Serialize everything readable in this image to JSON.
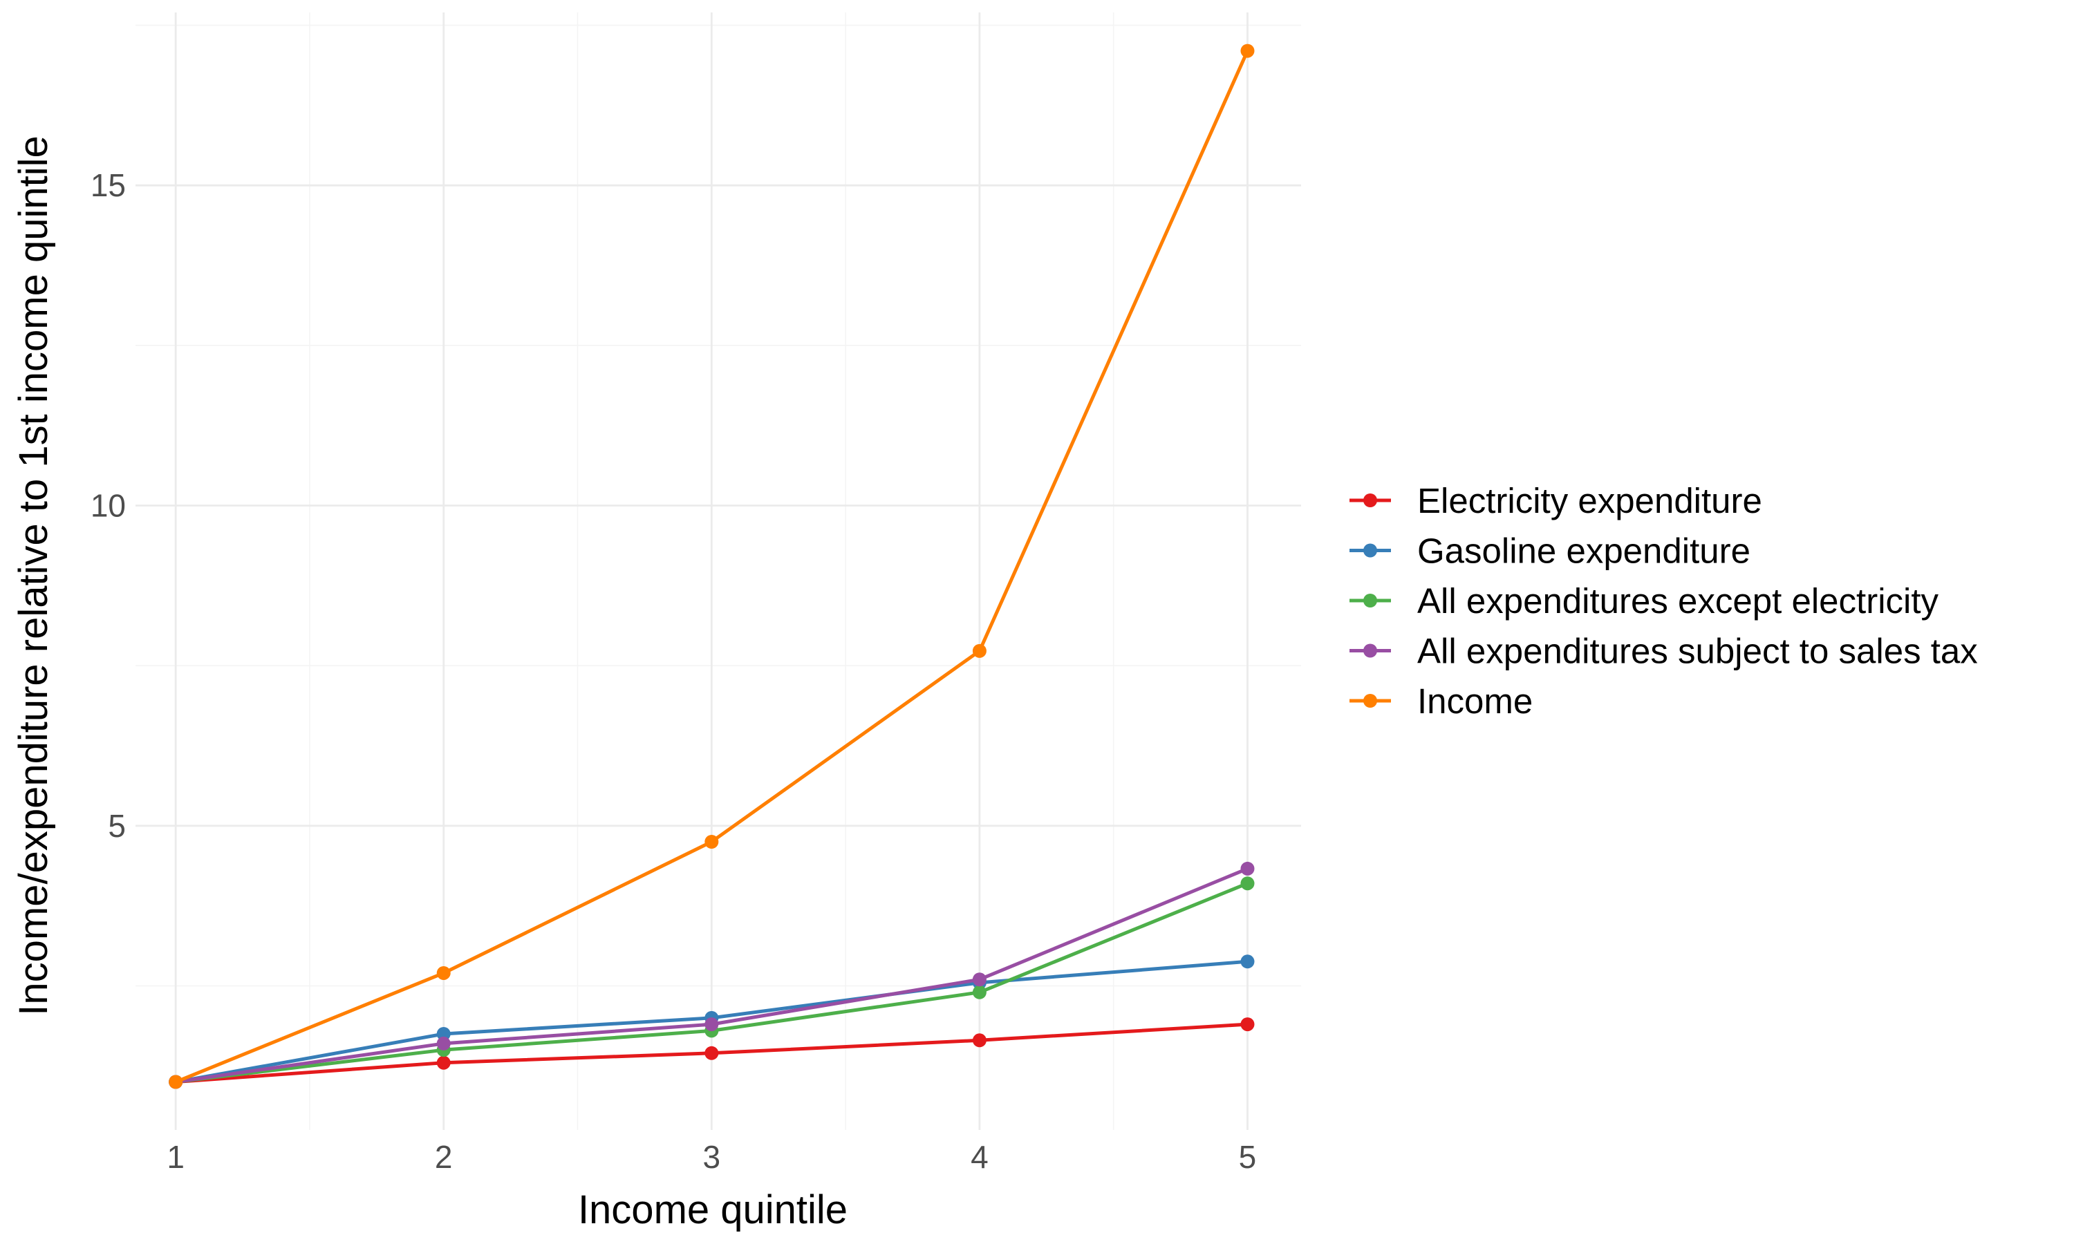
{
  "chart_data": {
    "type": "line",
    "title": "",
    "xlabel": "Income quintile",
    "ylabel": "Income/expenditure relative to 1st income quintile",
    "x": [
      1,
      2,
      3,
      4,
      5
    ],
    "x_ticks": [
      "1",
      "2",
      "3",
      "4",
      "5"
    ],
    "y_ticks": [
      "5",
      "10",
      "15"
    ],
    "xlim": [
      0.85,
      5.2
    ],
    "ylim": [
      0.25,
      17.7
    ],
    "grid": true,
    "legend_position": "right",
    "series": [
      {
        "name": "Electricity expenditure",
        "color": "#e41a1c",
        "values": [
          1.0,
          1.3,
          1.45,
          1.65,
          1.9
        ]
      },
      {
        "name": "Gasoline expenditure",
        "color": "#377eb8",
        "values": [
          1.0,
          1.75,
          2.0,
          2.55,
          2.88
        ]
      },
      {
        "name": "All expenditures except electricity",
        "color": "#4daf4a",
        "values": [
          1.0,
          1.5,
          1.8,
          2.4,
          4.1
        ]
      },
      {
        "name": "All expenditures subject to sales tax",
        "color": "#984ea3",
        "values": [
          1.0,
          1.6,
          1.9,
          2.6,
          4.33
        ]
      },
      {
        "name": "Income",
        "color": "#ff7f00",
        "values": [
          1.0,
          2.7,
          4.75,
          7.73,
          17.1
        ]
      }
    ]
  }
}
